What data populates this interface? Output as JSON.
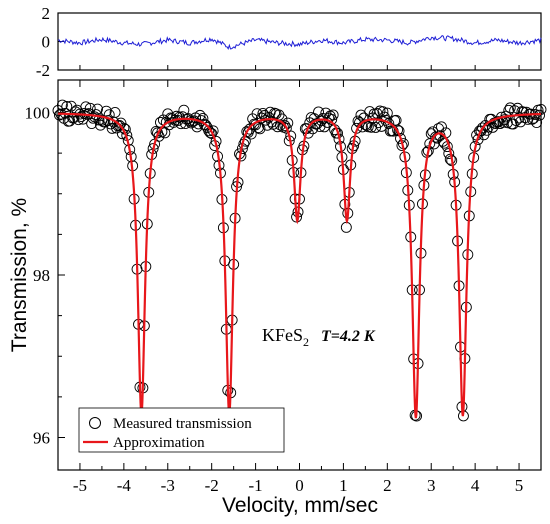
{
  "chart_data": [
    {
      "type": "line",
      "panel": "residuals",
      "ylim": [
        -2,
        2
      ],
      "yticks": [
        "2",
        "0",
        "-2"
      ],
      "series": [
        {
          "color": "#1f1fd6",
          "x": [
            -5.5,
            -5.0,
            -4.5,
            -4.0,
            -3.6,
            -3.0,
            -2.5,
            -2.0,
            -1.6,
            -1.0,
            -0.5,
            0.0,
            0.5,
            1.0,
            1.5,
            2.0,
            2.5,
            3.0,
            3.5,
            4.0,
            4.5,
            5.0,
            5.5
          ],
          "y": [
            0.1,
            -0.1,
            0.15,
            -0.1,
            -0.2,
            0.1,
            -0.1,
            0.2,
            -0.4,
            0.1,
            -0.1,
            -0.2,
            0.1,
            -0.1,
            0.15,
            0.1,
            -0.1,
            0.3,
            0.2,
            -0.1,
            0.1,
            -0.1,
            0.1
          ]
        }
      ]
    },
    {
      "type": "scatter",
      "panel": "spectrum",
      "xlabel": "Velocity, mm/sec",
      "ylabel": "Transmission, %",
      "xlim": [
        -5.5,
        5.5
      ],
      "ylim": [
        95.6,
        100.4
      ],
      "xticks": [
        -5,
        -4,
        -3,
        -2,
        -1,
        0,
        1,
        2,
        3,
        4,
        5
      ],
      "xtick_labels": [
        "-5",
        "-4",
        "-3",
        "-2",
        "-1",
        "0",
        "1",
        "2",
        "3",
        "4",
        "5"
      ],
      "yticks": [
        96,
        98,
        100
      ],
      "ytick_labels": [
        "96",
        "98",
        "100"
      ],
      "annotation": {
        "compound": "KFeS",
        "subscript": "2",
        "temperature": "T=4.2 K"
      },
      "legend": {
        "placement": "bottom-left",
        "entries": [
          "Measured transmission",
          "Approximation"
        ]
      },
      "model": {
        "baseline": 100.0,
        "lines": [
          {
            "center": -3.6,
            "depth": 3.7,
            "hwhm": 0.1
          },
          {
            "center": -1.6,
            "depth": 3.7,
            "hwhm": 0.1
          },
          {
            "center": -0.05,
            "depth": 1.3,
            "hwhm": 0.09
          },
          {
            "center": 1.08,
            "depth": 1.3,
            "hwhm": 0.09
          },
          {
            "center": 2.65,
            "depth": 3.72,
            "hwhm": 0.1
          },
          {
            "center": 3.72,
            "depth": 3.7,
            "hwhm": 0.1
          }
        ]
      },
      "series": [
        {
          "name": "Measured transmission",
          "style": "open-circles",
          "color": "#000000"
        },
        {
          "name": "Approximation",
          "style": "line",
          "color": "#e8171b"
        }
      ]
    }
  ]
}
